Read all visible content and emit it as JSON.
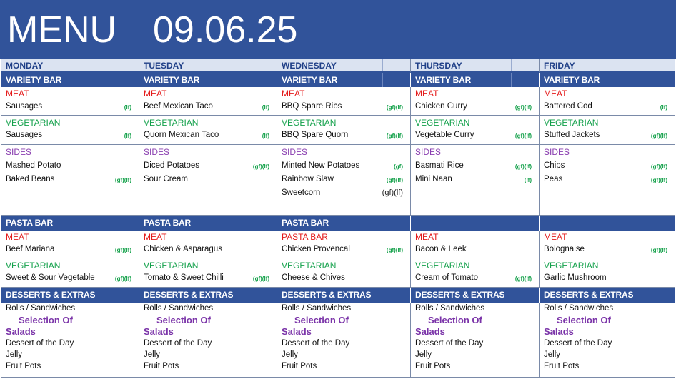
{
  "header": {
    "title": "MENU",
    "date": "09.06.25"
  },
  "days": [
    {
      "name": "MONDAY",
      "variety_label": "VARIETY BAR",
      "meat_label": "MEAT",
      "meat": "Sausages",
      "meat_tag": "(lf)",
      "veg_label": "VEGETARIAN",
      "veg": "Sausages",
      "veg_tag": "(lf)",
      "sides_label": "SIDES",
      "sides": [
        {
          "name": "Mashed Potato",
          "tag": ""
        },
        {
          "name": "Baked Beans",
          "tag": "(gf)(lf)"
        },
        {
          "name": "",
          "tag": ""
        }
      ],
      "pasta_label": "PASTA BAR",
      "pasta_meat_label": "MEAT",
      "pasta_meat": "Beef Mariana",
      "pasta_meat_tag": "(gf)(lf)",
      "pasta_veg_label": "VEGETARIAN",
      "pasta_veg": "Sweet & Sour Vegetable",
      "pasta_veg_tag": "(gf)(lf)"
    },
    {
      "name": "TUESDAY",
      "variety_label": "VARIETY BAR",
      "meat_label": "MEAT",
      "meat": "Beef Mexican Taco",
      "meat_tag": "(lf)",
      "veg_label": "VEGETARIAN",
      "veg": "Quorn Mexican Taco",
      "veg_tag": "(lf)",
      "sides_label": "SIDES",
      "sides": [
        {
          "name": "Diced Potatoes",
          "tag": "(gf)(lf)"
        },
        {
          "name": "Sour Cream",
          "tag": ""
        },
        {
          "name": "",
          "tag": ""
        }
      ],
      "pasta_label": "PASTA BAR",
      "pasta_meat_label": "MEAT",
      "pasta_meat": "Chicken & Asparagus",
      "pasta_meat_tag": "",
      "pasta_veg_label": "VEGETARIAN",
      "pasta_veg": "Tomato & Sweet Chilli",
      "pasta_veg_tag": "(gf)(lf)"
    },
    {
      "name": "WEDNESDAY",
      "variety_label": "VARIETY BAR",
      "meat_label": "MEAT",
      "meat": "BBQ Spare Ribs",
      "meat_tag": "(gf)(lf)",
      "veg_label": "VEGETARIAN",
      "veg": "BBQ Spare Quorn",
      "veg_tag": "(gf)(lf)",
      "sides_label": "SIDES",
      "sides": [
        {
          "name": "Minted New Potatoes",
          "tag": "(gf)"
        },
        {
          "name": "Rainbow Slaw",
          "tag": "(gf)(lf)"
        },
        {
          "name": "Sweetcorn",
          "tag": "(gf)(lf)"
        }
      ],
      "pasta_label": "PASTA BAR",
      "pasta_meat_label": "PASTA BAR",
      "pasta_meat": "Chicken Provencal",
      "pasta_meat_tag": "(gf)(lf)",
      "pasta_veg_label": "VEGETARIAN",
      "pasta_veg": "Cheese & Chives",
      "pasta_veg_tag": ""
    },
    {
      "name": "THURSDAY",
      "variety_label": "VARIETY BAR",
      "meat_label": "MEAT",
      "meat": "Chicken Curry",
      "meat_tag": "(gf)(lf)",
      "veg_label": "VEGETARIAN",
      "veg": "Vegetable Curry",
      "veg_tag": "(gf)(lf)",
      "sides_label": "SIDES",
      "sides": [
        {
          "name": "Basmati Rice",
          "tag": "(gf)(lf)"
        },
        {
          "name": "Mini Naan",
          "tag": "(lf)"
        },
        {
          "name": "",
          "tag": ""
        }
      ],
      "pasta_label": "",
      "pasta_meat_label": "MEAT",
      "pasta_meat": "Bacon & Leek",
      "pasta_meat_tag": "",
      "pasta_veg_label": "VEGETARIAN",
      "pasta_veg": "Cream of Tomato",
      "pasta_veg_tag": "(gf)(lf)"
    },
    {
      "name": "FRIDAY",
      "variety_label": "VARIETY BAR",
      "meat_label": "MEAT",
      "meat": "Battered Cod",
      "meat_tag": "(lf)",
      "veg_label": "VEGETARIAN",
      "veg": "Stuffed Jackets",
      "veg_tag": "(gf)(lf)",
      "sides_label": "SIDES",
      "sides": [
        {
          "name": "Chips",
          "tag": "(gf)(lf)"
        },
        {
          "name": "Peas",
          "tag": "(gf)(lf)"
        },
        {
          "name": "",
          "tag": ""
        }
      ],
      "pasta_label": "",
      "pasta_meat_label": "MEAT",
      "pasta_meat": "Bolognaise",
      "pasta_meat_tag": "(gf)(lf)",
      "pasta_veg_label": "VEGETARIAN",
      "pasta_veg": "Garlic Mushroom",
      "pasta_veg_tag": ""
    }
  ],
  "desserts": {
    "label": "DESSERTS & EXTRAS",
    "rolls": "Rolls / Sandwiches",
    "selection_line1": "Selection Of",
    "selection_line2": "Salads",
    "dessert": "Dessert of the Day",
    "jelly": "Jelly",
    "fruit": "Fruit Pots"
  },
  "colors": {
    "header_bg": "#31539a",
    "meat": "#e41a1a",
    "vegetarian": "#12a04a",
    "sides": "#8a3fb0",
    "dietary_tag": "#11a048"
  }
}
